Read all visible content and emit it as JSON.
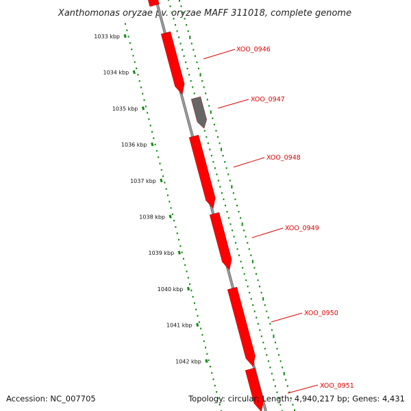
{
  "header": {
    "title": "Xanthomonas oryzae pv. oryzae MAFF 311018, complete genome"
  },
  "colors": {
    "background": "#ffffff",
    "gene_forward": "#ff0000",
    "gene_other": "#666666",
    "backbone": "#7a7a7a",
    "tick_marks": "#118811",
    "label_text": "#e00000"
  },
  "ruler": {
    "labels": [
      "1033 kbp",
      "1034 kbp",
      "1035 kbp",
      "1036 kbp",
      "1037 kbp",
      "1038 kbp",
      "1039 kbp",
      "1040 kbp",
      "1041 kbp",
      "1042 kbp"
    ]
  },
  "genes": [
    {
      "label": "XOO_0946",
      "color": "#ff0000"
    },
    {
      "label": "XOO_0947",
      "color": "#666666"
    },
    {
      "label": "XOO_0948",
      "color": "#ff0000"
    },
    {
      "label": "XOO_0949",
      "color": "#ff0000"
    },
    {
      "label": "XOO_0950",
      "color": "#ff0000"
    },
    {
      "label": "XOO_0951",
      "color": "#ff0000"
    }
  ],
  "footer": {
    "accession": "Accession: NC_007705",
    "summary": "Topology: circular; Length: 4,940,217 bp; Genes: 4,431"
  }
}
